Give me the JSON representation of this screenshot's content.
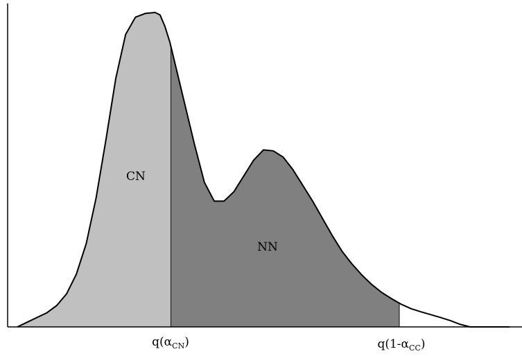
{
  "chart_data": {
    "type": "area",
    "title": "",
    "xlabel": "",
    "ylabel": "",
    "grid": false,
    "legend": "none",
    "xlim": [
      0,
      100
    ],
    "ylim": [
      0,
      1
    ],
    "density": {
      "x": [
        0,
        2,
        4,
        6,
        8,
        10,
        12,
        14,
        16,
        18,
        20,
        22,
        24,
        26,
        28,
        29,
        30,
        31,
        32,
        34,
        36,
        38,
        40,
        42,
        44,
        46,
        48,
        50,
        52,
        54,
        56,
        58,
        60,
        62,
        64,
        66,
        68,
        70,
        72,
        74,
        76,
        78,
        80,
        82,
        84,
        86,
        88,
        90,
        92,
        94,
        96,
        98,
        100
      ],
      "y": [
        0.0,
        0.015,
        0.03,
        0.045,
        0.068,
        0.105,
        0.168,
        0.265,
        0.41,
        0.595,
        0.79,
        0.93,
        0.985,
        0.997,
        1.0,
        0.992,
        0.955,
        0.905,
        0.84,
        0.71,
        0.58,
        0.46,
        0.4,
        0.4,
        0.43,
        0.48,
        0.53,
        0.563,
        0.56,
        0.54,
        0.5,
        0.45,
        0.4,
        0.345,
        0.29,
        0.24,
        0.2,
        0.165,
        0.135,
        0.11,
        0.09,
        0.072,
        0.058,
        0.048,
        0.039,
        0.03,
        0.02,
        0.008,
        0.0,
        0.0,
        0.0,
        0.0,
        0.0
      ]
    },
    "regions": [
      {
        "label": "CN",
        "x_from": 0,
        "x_to": 31.2,
        "color": "#c0c0c0"
      },
      {
        "label": "NN",
        "x_from": 31.2,
        "x_to": 77.6,
        "color": "#808080"
      }
    ],
    "ticks": [
      {
        "x": 31.2,
        "base": "q(α",
        "sub": "CN",
        "tail": ")"
      },
      {
        "x": 77.6,
        "base": "q(1-α",
        "sub": "CC",
        "tail": ")"
      }
    ]
  }
}
